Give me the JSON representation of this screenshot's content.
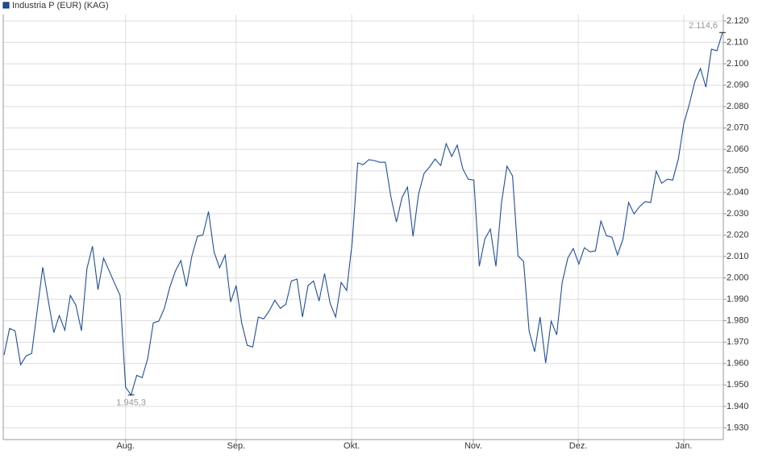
{
  "chart_data": {
    "type": "line",
    "series": [
      {
        "name": "Industria P (EUR) (KAG)",
        "color": "#1f4e9a",
        "values": [
          1964.0,
          1976.4,
          1975.3,
          1959.4,
          1963.6,
          1964.7,
          1984.7,
          2005.0,
          1989.6,
          1974.5,
          1982.4,
          1975.6,
          1991.8,
          1987.3,
          1975.3,
          2004.3,
          2014.8,
          1994.5,
          2009.2,
          2003.5,
          1997.5,
          1991.8,
          1948.9,
          1945.3,
          1954.5,
          1953.4,
          1962.4,
          1979.0,
          1979.8,
          1985.8,
          1995.6,
          2003.2,
          2008.1,
          1996.0,
          2010.3,
          2019.4,
          2020.1,
          2031.0,
          2012.2,
          2004.7,
          2010.7,
          1988.8,
          1996.4,
          1979.0,
          1968.5,
          1967.7,
          1981.7,
          1980.9,
          1984.7,
          1989.6,
          1985.8,
          1987.7,
          1998.6,
          1999.4,
          1981.7,
          1996.4,
          1998.6,
          1989.2,
          2002.0,
          1988.1,
          1981.7,
          1997.9,
          1994.1,
          2016.7,
          2053.7,
          2052.9,
          2055.2,
          2054.8,
          2054.0,
          2054.0,
          2037.8,
          2026.1,
          2037.5,
          2042.4,
          2019.4,
          2039.0,
          2048.8,
          2051.8,
          2055.5,
          2052.5,
          2062.7,
          2056.7,
          2062.0,
          2051.0,
          2046.1,
          2045.7,
          2005.4,
          2018.2,
          2022.8,
          2005.4,
          2034.8,
          2052.2,
          2047.6,
          2010.3,
          2007.7,
          1975.3,
          1965.5,
          1981.7,
          1960.2,
          1979.8,
          1973.4,
          1997.9,
          2009.2,
          2013.7,
          2006.5,
          2014.1,
          2012.2,
          2012.6,
          2026.5,
          2019.7,
          2019.0,
          2010.7,
          2018.2,
          2035.2,
          2029.9,
          2033.3,
          2035.6,
          2035.2,
          2049.9,
          2044.2,
          2046.1,
          2045.7,
          2055.5,
          2072.1,
          2081.2,
          2091.7,
          2097.8,
          2089.1,
          2106.8,
          2106.1,
          2114.6
        ]
      }
    ],
    "annotations": [
      {
        "label": "2.114,6",
        "value": 2114.6
      },
      {
        "label": "1.945,3",
        "value": 1945.3
      }
    ],
    "xlim": [
      0,
      130
    ],
    "xticks": [
      {
        "value": 22,
        "label": "Aug."
      },
      {
        "value": 42,
        "label": "Sep."
      },
      {
        "value": 62.9,
        "label": "Okt."
      },
      {
        "value": 84.9,
        "label": "Nov."
      },
      {
        "value": 103.9,
        "label": "Dez."
      },
      {
        "value": 123,
        "label": "Jan."
      }
    ],
    "ylim": [
      1924.5,
      2123
    ],
    "yticks": [
      {
        "value": 1930,
        "label": "1.930"
      },
      {
        "value": 1940,
        "label": "1.940"
      },
      {
        "value": 1950,
        "label": "1.950"
      },
      {
        "value": 1960,
        "label": "1.960"
      },
      {
        "value": 1970,
        "label": "1.970"
      },
      {
        "value": 1980,
        "label": "1.980"
      },
      {
        "value": 1990,
        "label": "1.990"
      },
      {
        "value": 2000,
        "label": "2.000"
      },
      {
        "value": 2010,
        "label": "2.010"
      },
      {
        "value": 2020,
        "label": "2.020"
      },
      {
        "value": 2030,
        "label": "2.030"
      },
      {
        "value": 2040,
        "label": "2.040"
      },
      {
        "value": 2050,
        "label": "2.050"
      },
      {
        "value": 2060,
        "label": "2.060"
      },
      {
        "value": 2070,
        "label": "2.070"
      },
      {
        "value": 2080,
        "label": "2.080"
      },
      {
        "value": 2090,
        "label": "2.090"
      },
      {
        "value": 2100,
        "label": "2.100"
      },
      {
        "value": 2110,
        "label": "2.110"
      },
      {
        "value": 2120,
        "label": "2.120"
      }
    ],
    "grid": true
  }
}
